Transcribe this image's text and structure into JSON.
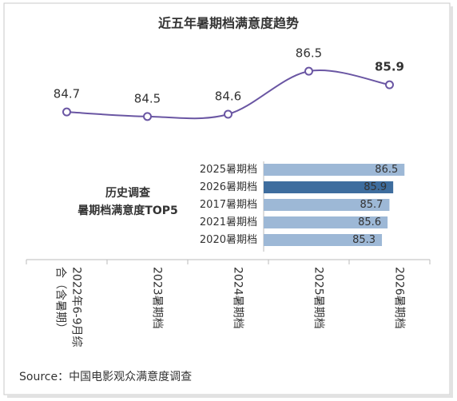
{
  "chart_data": [
    {
      "type": "line",
      "title": "近五年暑期档满意度趋势",
      "categories": [
        "2022年6-9月综合（含暑期）",
        "2023暑期档",
        "2024暑期档",
        "2025暑期档",
        "2026暑期档"
      ],
      "values": [
        84.7,
        84.5,
        84.6,
        86.5,
        85.9
      ],
      "color": "#6a56a3",
      "emphasis": [
        false,
        false,
        false,
        false,
        true
      ],
      "ylim": [
        84,
        87
      ],
      "smooth": true
    },
    {
      "type": "hbar",
      "title_lines": [
        "历史调查",
        "暑期档满意度TOP5"
      ],
      "categories": [
        "2025暑期档",
        "2026暑期档",
        "2017暑期档",
        "2021暑期档",
        "2020暑期档"
      ],
      "values": [
        86.5,
        85.9,
        85.7,
        85.6,
        85.3
      ],
      "colors": [
        "#9db8d6",
        "#3e6d9e",
        "#9db8d6",
        "#9db8d6",
        "#9db8d6"
      ],
      "emphasis": [
        false,
        true,
        false,
        false,
        false
      ],
      "xlim": [
        79,
        87
      ]
    }
  ],
  "source": "Source：中国电影观众满意度调查"
}
